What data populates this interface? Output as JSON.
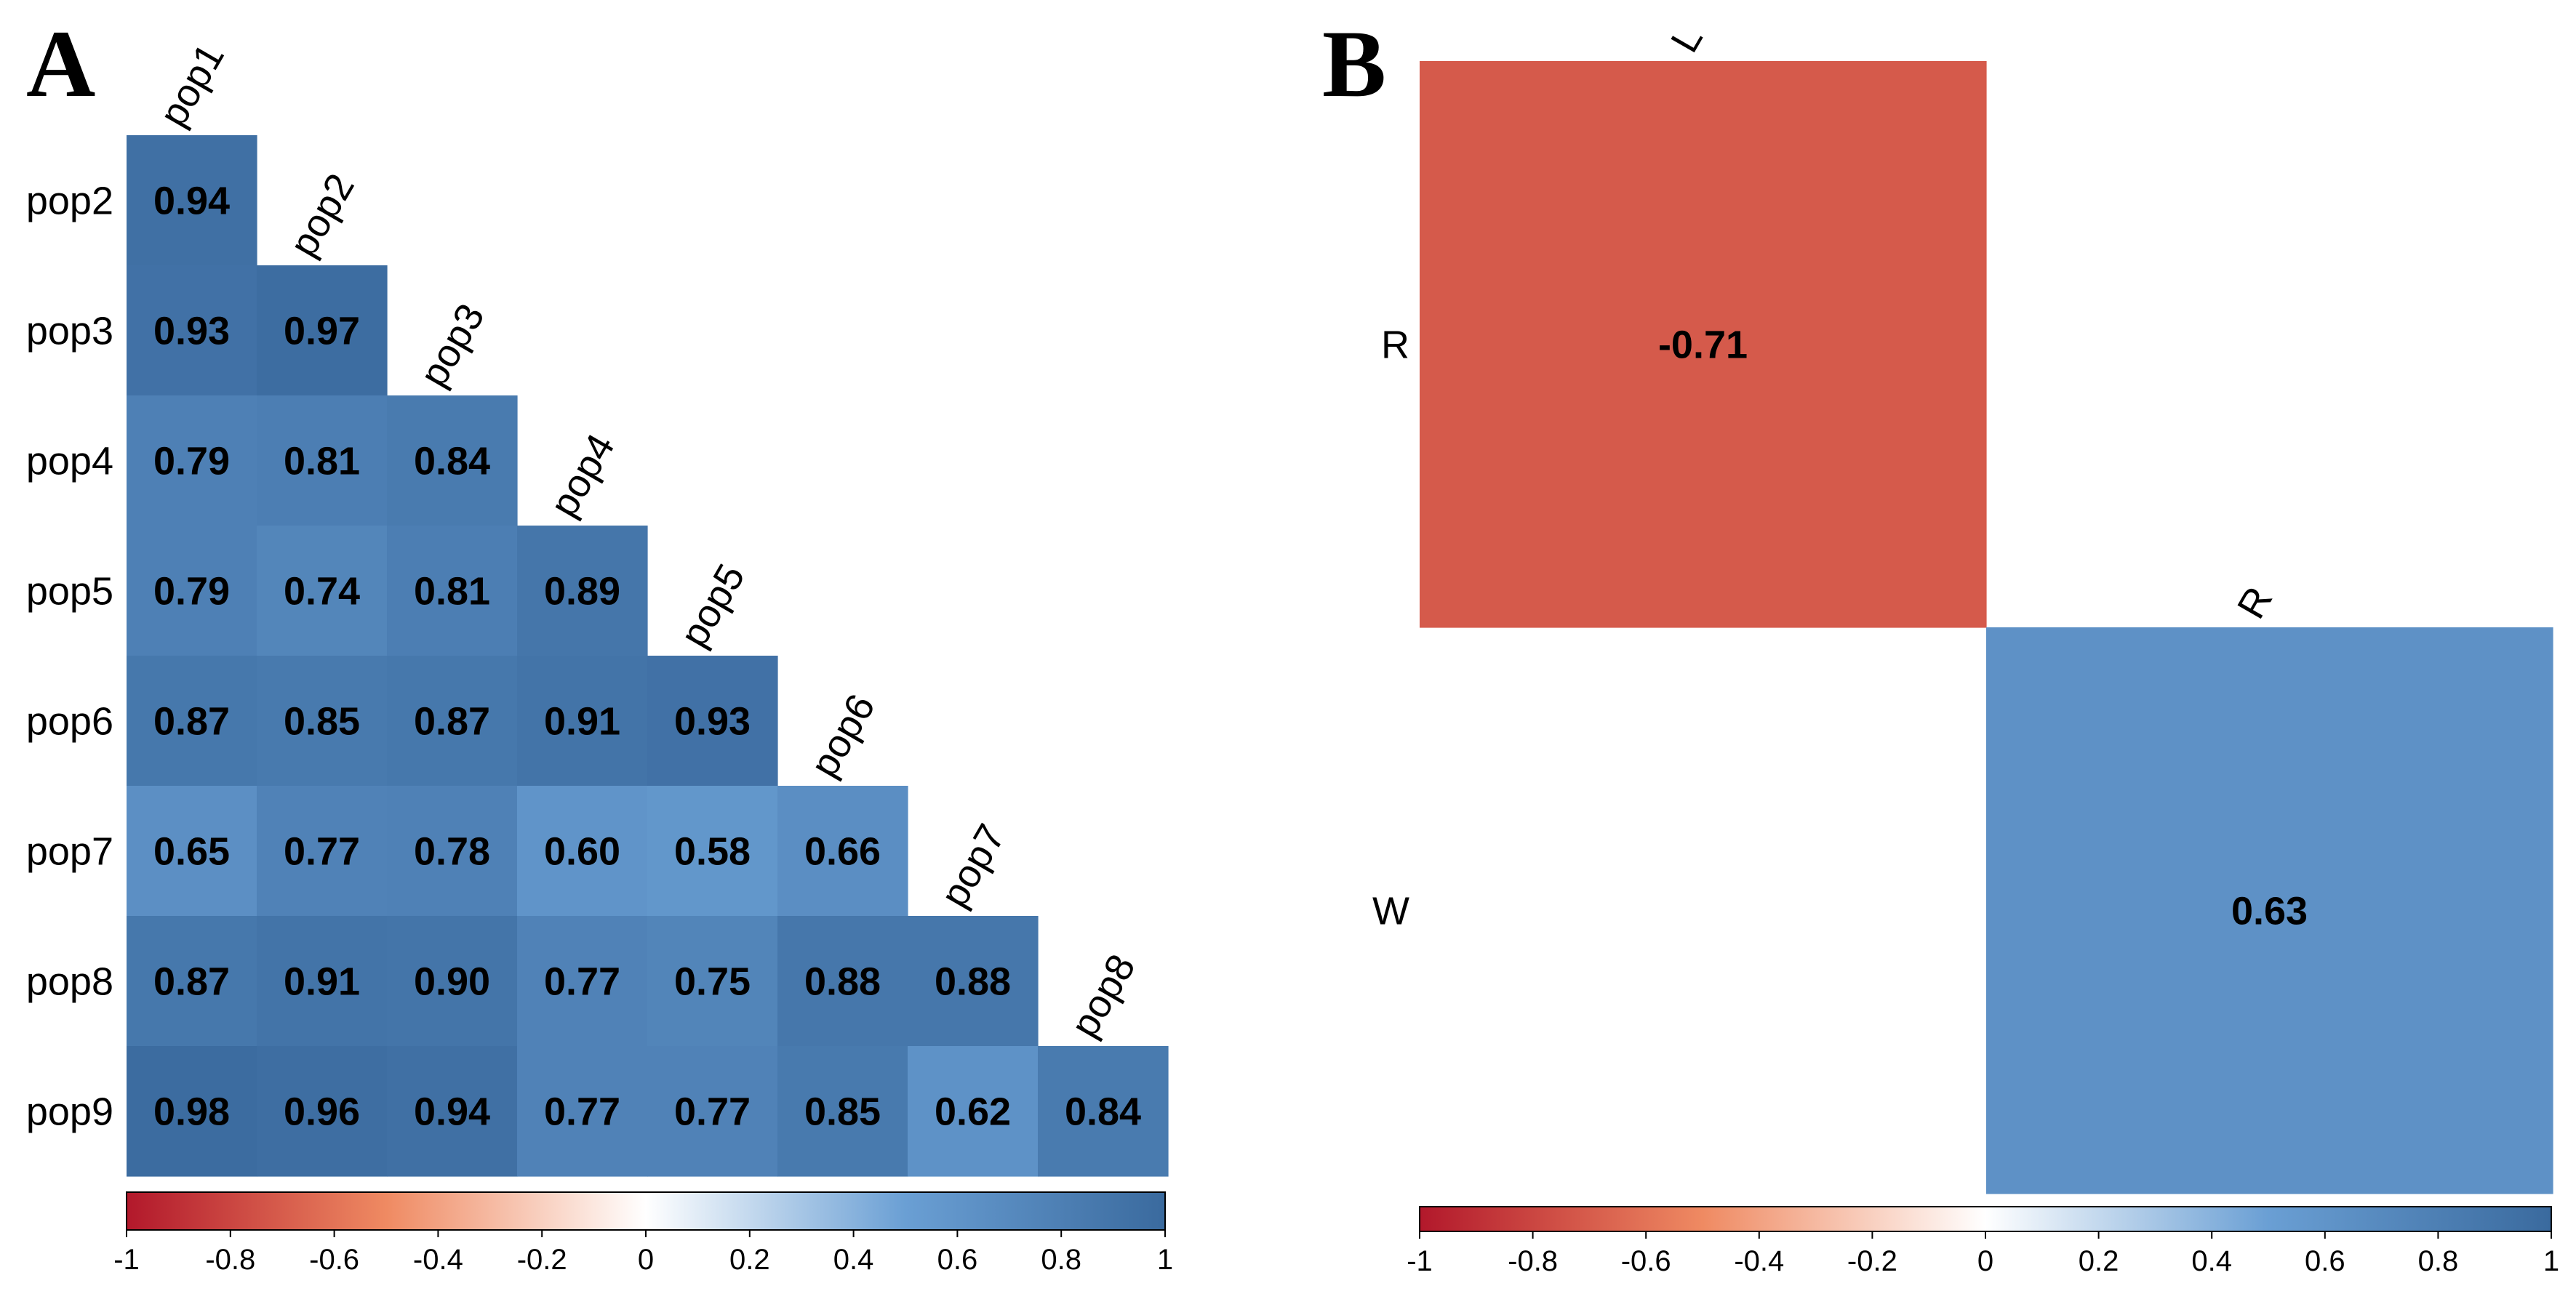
{
  "chart_data": [
    {
      "type": "heatmap",
      "panel_label": "A",
      "title": "",
      "shape": "lower-triangle",
      "row_labels": [
        "pop2",
        "pop3",
        "pop4",
        "pop5",
        "pop6",
        "pop7",
        "pop8",
        "pop9"
      ],
      "col_labels": [
        "pop1",
        "pop2",
        "pop3",
        "pop4",
        "pop5",
        "pop6",
        "pop7",
        "pop8"
      ],
      "values": [
        [
          0.94
        ],
        [
          0.93,
          0.97
        ],
        [
          0.79,
          0.81,
          0.84
        ],
        [
          0.79,
          0.74,
          0.81,
          0.89
        ],
        [
          0.87,
          0.85,
          0.87,
          0.91,
          0.93
        ],
        [
          0.65,
          0.77,
          0.78,
          0.6,
          0.58,
          0.66
        ],
        [
          0.87,
          0.91,
          0.9,
          0.77,
          0.75,
          0.88,
          0.88
        ],
        [
          0.98,
          0.96,
          0.94,
          0.77,
          0.77,
          0.85,
          0.62,
          0.84
        ]
      ],
      "value_labels": [
        [
          "0.94"
        ],
        [
          "0.93",
          "0.97"
        ],
        [
          "0.79",
          "0.81",
          "0.84"
        ],
        [
          "0.79",
          "0.74",
          "0.81",
          "0.89"
        ],
        [
          "0.87",
          "0.85",
          "0.87",
          "0.91",
          "0.93"
        ],
        [
          "0.65",
          "0.77",
          "0.78",
          "0.60",
          "0.58",
          "0.66"
        ],
        [
          "0.87",
          "0.91",
          "0.90",
          "0.77",
          "0.75",
          "0.88",
          "0.88"
        ],
        [
          "0.98",
          "0.96",
          "0.94",
          "0.77",
          "0.77",
          "0.85",
          "0.62",
          "0.84"
        ]
      ],
      "colorbar": {
        "range": [
          -1,
          1
        ],
        "ticks": [
          "-1",
          "-0.8",
          "-0.6",
          "-0.4",
          "-0.2",
          "0",
          "0.2",
          "0.4",
          "0.6",
          "0.8",
          "1"
        ],
        "tick_values": [
          -1,
          -0.8,
          -0.6,
          -0.4,
          -0.2,
          0,
          0.2,
          0.4,
          0.6,
          0.8,
          1
        ],
        "placement": "bottom"
      }
    },
    {
      "type": "heatmap",
      "panel_label": "B",
      "title": "",
      "shape": "lower-triangle",
      "row_labels": [
        "R",
        "W"
      ],
      "col_labels": [
        "L",
        "R"
      ],
      "values": [
        [
          -0.71
        ],
        [
          null,
          0.63
        ]
      ],
      "value_labels": [
        [
          "-0.71"
        ],
        [
          "",
          "0.63"
        ]
      ],
      "colorbar": {
        "range": [
          -1,
          1
        ],
        "ticks": [
          "-1",
          "-0.8",
          "-0.6",
          "-0.4",
          "-0.2",
          "0",
          "0.2",
          "0.4",
          "0.6",
          "0.8",
          "1"
        ],
        "tick_values": [
          -1,
          -0.8,
          -0.6,
          -0.4,
          -0.2,
          0,
          0.2,
          0.4,
          0.6,
          0.8,
          1
        ],
        "placement": "bottom"
      }
    }
  ],
  "palette": {
    "negative_strong": "#b2182b",
    "negative_mid": "#ef8a62",
    "neutral": "#ffffff",
    "positive_mid": "#6a9fd4",
    "positive_strong": "#3a6a9e"
  }
}
